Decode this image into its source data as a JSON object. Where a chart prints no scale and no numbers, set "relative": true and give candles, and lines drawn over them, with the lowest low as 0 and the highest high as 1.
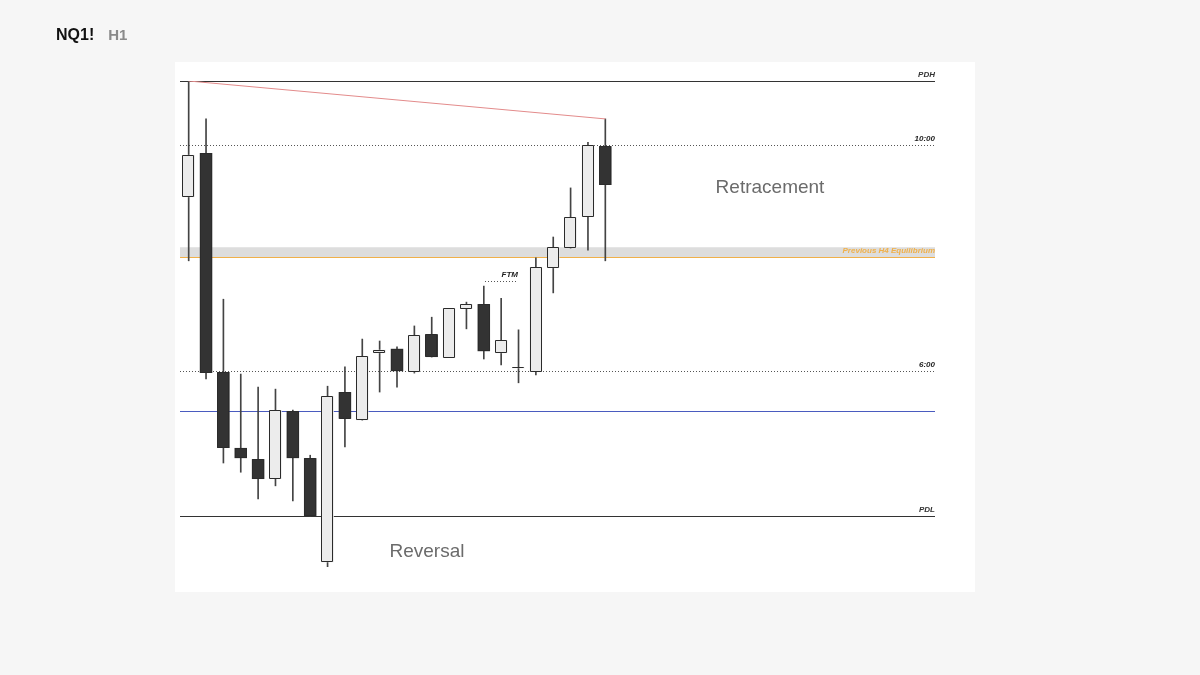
{
  "chart_data": {
    "type": "candlestick",
    "title": "NQ1!",
    "subtitle": "H1",
    "relative": true,
    "marker": "none",
    "categories": [
      null,
      null,
      null,
      null,
      null,
      null,
      null,
      null,
      null,
      null,
      null,
      null,
      null,
      null,
      null,
      null,
      null,
      null,
      null,
      null,
      null,
      null,
      null,
      null,
      null
    ],
    "ohlc": [
      [
        0.761,
        1,
        0.63,
        0.848
      ],
      [
        0.852,
        0.922,
        0.387,
        0.399
      ],
      [
        0.401,
        0.551,
        0.214,
        0.245
      ],
      [
        0.245,
        0.397,
        0.195,
        0.224
      ],
      [
        0.222,
        0.37,
        0.14,
        0.181
      ],
      [
        0.181,
        0.366,
        0.167,
        0.323
      ],
      [
        0.321,
        0.323,
        0.136,
        0.224
      ],
      [
        0.224,
        0.23,
        0.105,
        0.105
      ],
      [
        0.01,
        0.372,
        0,
        0.352
      ],
      [
        0.36,
        0.412,
        0.247,
        0.305
      ],
      [
        0.302,
        0.469,
        0.302,
        0.434
      ],
      [
        0.44,
        0.465,
        0.36,
        0.447
      ],
      [
        0.449,
        0.453,
        0.37,
        0.403
      ],
      [
        0.401,
        0.496,
        0.399,
        0.477
      ],
      [
        0.479,
        0.514,
        0.432,
        0.432
      ],
      [
        0.43,
        0.533,
        0.43,
        0.533
      ],
      [
        0.531,
        0.545,
        0.49,
        0.541
      ],
      [
        0.541,
        0.578,
        0.428,
        0.444
      ],
      [
        0.44,
        0.553,
        0.416,
        0.467
      ],
      [
        0.409,
        0.488,
        0.379,
        0.409
      ],
      [
        0.401,
        0.636,
        0.395,
        0.617
      ],
      [
        0.615,
        0.679,
        0.564,
        0.658
      ],
      [
        0.656,
        0.78,
        0.656,
        0.72
      ],
      [
        0.72,
        0.874,
        0.652,
        0.868
      ],
      [
        0.866,
        0.922,
        0.63,
        0.786
      ]
    ],
    "colors": [
      "#ececec",
      "#333333",
      "#333333",
      "#333333",
      "#333333",
      "#ececec",
      "#333333",
      "#333333",
      "#ececec",
      "#333333",
      "#ececec",
      "#ececec",
      "#333333",
      "#ececec",
      "#333333",
      "#ececec",
      "#ececec",
      "#333333",
      "#ececec",
      "#ececec",
      "#ececec",
      "#ececec",
      "#ececec",
      "#ececec",
      "#333333"
    ],
    "series": [
      {
        "type": "line",
        "color": "#e38b8b",
        "values": [
          1,
          null,
          null,
          null,
          null,
          null,
          null,
          null,
          null,
          null,
          null,
          null,
          null,
          null,
          null,
          null,
          null,
          null,
          null,
          null,
          null,
          null,
          null,
          null,
          0.922
        ]
      }
    ],
    "ref_lines": [
      {
        "axis": "y",
        "value": 1,
        "label": "PDH",
        "color": "#333333"
      },
      {
        "axis": "y",
        "value": 0.868,
        "color": "#555555",
        "line_style": "dotted"
      },
      {
        "axis": "y",
        "value": 0.638,
        "label": "Previous H4 Equilibrium",
        "color": "#f0b04a"
      },
      {
        "axis": "y",
        "value": 0.403,
        "color": "#555555",
        "line_style": "dotted"
      },
      {
        "axis": "y",
        "value": 0.321,
        "color": "#4a5bbf"
      },
      {
        "axis": "y",
        "value": 0.105,
        "label": "PDL",
        "color": "#333333"
      }
    ],
    "bands": [
      {
        "axis": "y",
        "from": 0.636,
        "to": 0.658,
        "color": "#dddddd"
      }
    ],
    "annotations": [
      "Retracement",
      "Reversal",
      "FTM",
      {
        "text": "10:00",
        "y": 0.868
      },
      {
        "text": "6:00",
        "y": 0.403
      }
    ]
  }
}
